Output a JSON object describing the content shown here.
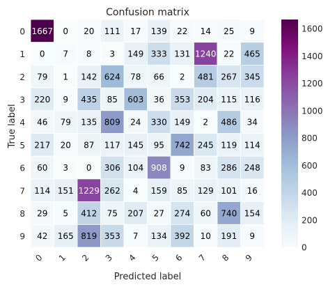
{
  "chart_data": {
    "type": "heatmap",
    "title": "Confusion matrix",
    "xlabel": "Predicted label",
    "ylabel": "True label",
    "x_ticks": [
      "0",
      "1",
      "2",
      "3",
      "4",
      "5",
      "6",
      "7",
      "8",
      "9"
    ],
    "y_ticks": [
      "0",
      "1",
      "2",
      "3",
      "4",
      "5",
      "6",
      "7",
      "8",
      "9"
    ],
    "matrix": [
      [
        1667,
        0,
        20,
        111,
        17,
        139,
        22,
        14,
        25,
        9
      ],
      [
        0,
        7,
        8,
        3,
        149,
        333,
        131,
        1240,
        22,
        465
      ],
      [
        79,
        1,
        142,
        624,
        78,
        66,
        2,
        481,
        267,
        345
      ],
      [
        220,
        9,
        435,
        85,
        603,
        36,
        353,
        204,
        115,
        116
      ],
      [
        46,
        79,
        135,
        809,
        24,
        330,
        149,
        2,
        486,
        34
      ],
      [
        217,
        20,
        87,
        117,
        145,
        95,
        742,
        245,
        119,
        114
      ],
      [
        60,
        3,
        0,
        306,
        104,
        908,
        9,
        83,
        286,
        248
      ],
      [
        114,
        151,
        1229,
        262,
        4,
        159,
        85,
        129,
        101,
        16
      ],
      [
        29,
        5,
        412,
        75,
        207,
        27,
        274,
        60,
        740,
        154
      ],
      [
        42,
        165,
        819,
        353,
        7,
        134,
        392,
        10,
        191,
        9
      ]
    ],
    "colormap": "BuPu",
    "color_range": [
      0,
      1667
    ],
    "colorbar_ticks": [
      "0",
      "200",
      "400",
      "600",
      "800",
      "1000",
      "1200",
      "1400",
      "1600"
    ],
    "colorbar_tick_values": [
      0,
      200,
      400,
      600,
      800,
      1000,
      1200,
      1400,
      1600
    ],
    "grid": true
  }
}
